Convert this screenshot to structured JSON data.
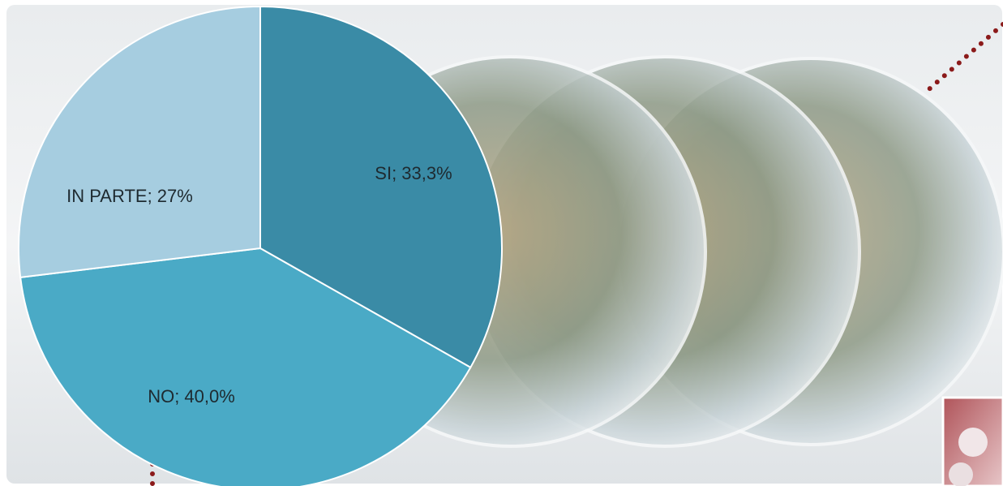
{
  "chart_data": {
    "type": "pie",
    "values": [
      33.3,
      40.0,
      27
    ],
    "value_labels": [
      "SI; 33,3%",
      "NO; 40,0%",
      "IN PARTE; 27%"
    ],
    "colors": [
      "#3a8ba6",
      "#4aaac6",
      "#a6cde0"
    ]
  }
}
